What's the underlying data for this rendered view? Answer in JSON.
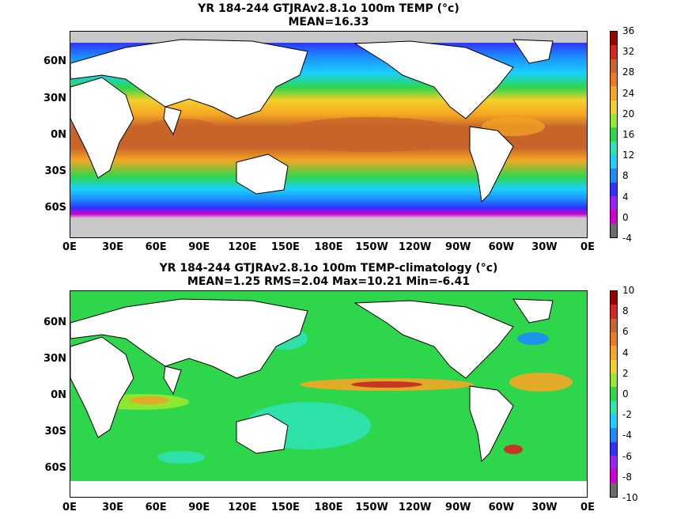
{
  "panel_top": {
    "title_line1": "YR 184-244 GTJRAv2.8.1o 100m TEMP (°c)",
    "title_line2": "MEAN=16.33",
    "colorbar": {
      "ticks": [
        "36",
        "32",
        "28",
        "24",
        "20",
        "16",
        "12",
        "8",
        "4",
        "0",
        "-4"
      ],
      "colors": [
        "#6b6b6b",
        "#d000d0",
        "#a020ff",
        "#3030ff",
        "#1c8cff",
        "#19d0ff",
        "#2ee3b4",
        "#2ed64c",
        "#98e830",
        "#f2d02a",
        "#f5a623",
        "#ee7a1f",
        "#c8642a",
        "#d7261f",
        "#9a0000"
      ]
    }
  },
  "panel_bottom": {
    "title_line1": "YR 184-244 GTJRAv2.8.1o 100m TEMP-climatology (°c)",
    "title_line2": "MEAN=1.25   RMS=2.04   Max=10.21   Min=-6.41",
    "colorbar": {
      "ticks": [
        "10",
        "8",
        "6",
        "4",
        "2",
        "0",
        "-2",
        "-4",
        "-6",
        "-8",
        "-10"
      ],
      "colors": [
        "#6b6b6b",
        "#d000d0",
        "#a020ff",
        "#3030ff",
        "#1c8cff",
        "#19d0ff",
        "#2ee3b4",
        "#2ed64c",
        "#98e830",
        "#f2d02a",
        "#f5a623",
        "#ee7a1f",
        "#c8642a",
        "#d7261f",
        "#9a0000"
      ]
    }
  },
  "lat_labels_top": [
    "60N",
    "30N",
    "0N",
    "30S",
    "60S"
  ],
  "lat_labels_bottom": [
    "60N",
    "30N",
    "0N",
    "30S",
    "60S"
  ],
  "lon_labels": [
    "0E",
    "30E",
    "60E",
    "90E",
    "120E",
    "150E",
    "180E",
    "150W",
    "120W",
    "90W",
    "60W",
    "30W",
    "0E"
  ],
  "colors": {
    "land": "#ffffff",
    "coast": "#000000",
    "ice": "#c8c8c8"
  }
}
